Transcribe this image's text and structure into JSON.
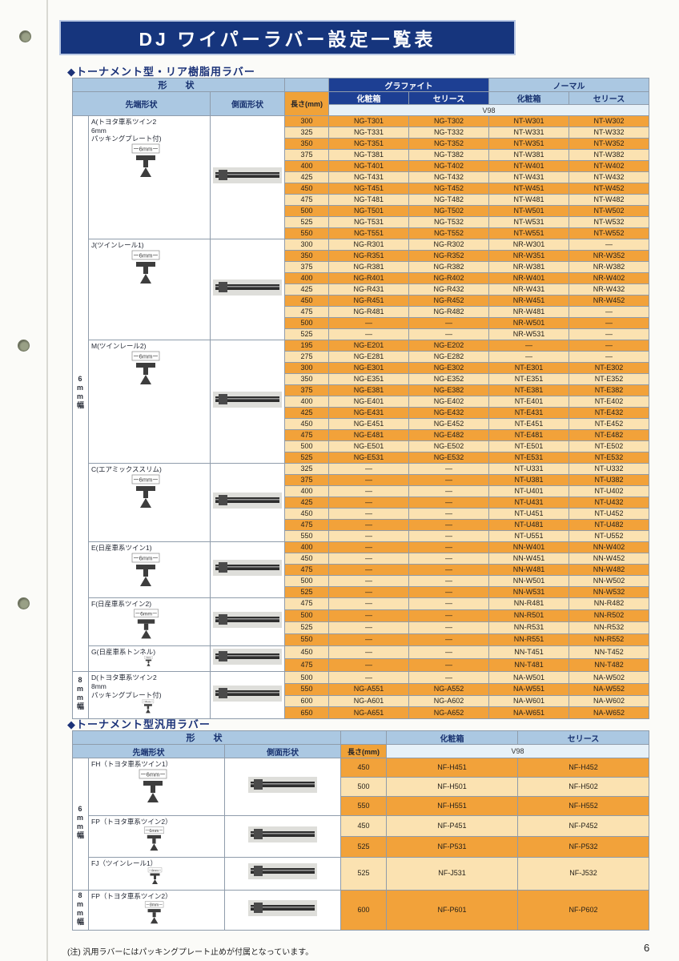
{
  "page": {
    "title": "DJ ワイパーラバー設定一覧表",
    "page_number": "6",
    "note": "(注) 汎用ラバーにはパッキングプレート止めが付属となっています。"
  },
  "section1": {
    "heading": "◆トーナメント型・リア樹脂用ラバー",
    "headers": {
      "shape": "形　状",
      "tip": "先端形状",
      "side": "側面形状",
      "length": "長さ(mm)",
      "graphite": "グラファイト",
      "normal": "ノーマル",
      "box": "化粧箱",
      "series": "セリース",
      "v98": "V98"
    },
    "groups": [
      {
        "label": "A(トヨタ車系ツイン2\n6mm\nパッキングプレート付)",
        "band": "6mm幅",
        "dim": "6mm",
        "rows": [
          [
            "300",
            "NG-T301",
            "NG-T302",
            "NT-W301",
            "NT-W302"
          ],
          [
            "325",
            "NG-T331",
            "NG-T332",
            "NT-W331",
            "NT-W332"
          ],
          [
            "350",
            "NG-T351",
            "NG-T352",
            "NT-W351",
            "NT-W352"
          ],
          [
            "375",
            "NG-T381",
            "NG-T382",
            "NT-W381",
            "NT-W382"
          ],
          [
            "400",
            "NG-T401",
            "NG-T402",
            "NT-W401",
            "NT-W402"
          ],
          [
            "425",
            "NG-T431",
            "NG-T432",
            "NT-W431",
            "NT-W432"
          ],
          [
            "450",
            "NG-T451",
            "NG-T452",
            "NT-W451",
            "NT-W452"
          ],
          [
            "475",
            "NG-T481",
            "NG-T482",
            "NT-W481",
            "NT-W482"
          ],
          [
            "500",
            "NG-T501",
            "NG-T502",
            "NT-W501",
            "NT-W502"
          ],
          [
            "525",
            "NG-T531",
            "NG-T532",
            "NT-W531",
            "NT-W532"
          ],
          [
            "550",
            "NG-T551",
            "NG-T552",
            "NT-W551",
            "NT-W552"
          ]
        ]
      },
      {
        "label": "J(ツインレール1)",
        "band": "6mm幅",
        "dim": "6mm",
        "rows": [
          [
            "300",
            "NG-R301",
            "NG-R302",
            "NR-W301",
            "—"
          ],
          [
            "350",
            "NG-R351",
            "NG-R352",
            "NR-W351",
            "NR-W352"
          ],
          [
            "375",
            "NG-R381",
            "NG-R382",
            "NR-W381",
            "NR-W382"
          ],
          [
            "400",
            "NG-R401",
            "NG-R402",
            "NR-W401",
            "NR-W402"
          ],
          [
            "425",
            "NG-R431",
            "NG-R432",
            "NR-W431",
            "NR-W432"
          ],
          [
            "450",
            "NG-R451",
            "NG-R452",
            "NR-W451",
            "NR-W452"
          ],
          [
            "475",
            "NG-R481",
            "NG-R482",
            "NR-W481",
            "—"
          ],
          [
            "500",
            "—",
            "—",
            "NR-W501",
            "—"
          ],
          [
            "525",
            "—",
            "—",
            "NR-W531",
            "—"
          ]
        ]
      },
      {
        "label": "M(ツインレール2)",
        "band": "6mm幅",
        "dim": "6mm",
        "rows": [
          [
            "195",
            "NG-E201",
            "NG-E202",
            "—",
            "—"
          ],
          [
            "275",
            "NG-E281",
            "NG-E282",
            "—",
            "—"
          ],
          [
            "300",
            "NG-E301",
            "NG-E302",
            "NT-E301",
            "NT-E302"
          ],
          [
            "350",
            "NG-E351",
            "NG-E352",
            "NT-E351",
            "NT-E352"
          ],
          [
            "375",
            "NG-E381",
            "NG-E382",
            "NT-E381",
            "NT-E382"
          ],
          [
            "400",
            "NG-E401",
            "NG-E402",
            "NT-E401",
            "NT-E402"
          ],
          [
            "425",
            "NG-E431",
            "NG-E432",
            "NT-E431",
            "NT-E432"
          ],
          [
            "450",
            "NG-E451",
            "NG-E452",
            "NT-E451",
            "NT-E452"
          ],
          [
            "475",
            "NG-E481",
            "NG-E482",
            "NT-E481",
            "NT-E482"
          ],
          [
            "500",
            "NG-E501",
            "NG-E502",
            "NT-E501",
            "NT-E502"
          ],
          [
            "525",
            "NG-E531",
            "NG-E532",
            "NT-E531",
            "NT-E532"
          ]
        ]
      },
      {
        "label": "C(エアミックススリム)",
        "band": "6mm幅",
        "dim": "6mm",
        "rows": [
          [
            "325",
            "—",
            "—",
            "NT-U331",
            "NT-U332"
          ],
          [
            "375",
            "—",
            "—",
            "NT-U381",
            "NT-U382"
          ],
          [
            "400",
            "—",
            "—",
            "NT-U401",
            "NT-U402"
          ],
          [
            "425",
            "—",
            "—",
            "NT-U431",
            "NT-U432"
          ],
          [
            "450",
            "—",
            "—",
            "NT-U451",
            "NT-U452"
          ],
          [
            "475",
            "—",
            "—",
            "NT-U481",
            "NT-U482"
          ],
          [
            "550",
            "—",
            "—",
            "NT-U551",
            "NT-U552"
          ]
        ]
      },
      {
        "label": "E(日産車系ツイン1)",
        "band": "6mm幅",
        "dim": "6mm",
        "rows": [
          [
            "400",
            "—",
            "—",
            "NN-W401",
            "NN-W402"
          ],
          [
            "450",
            "—",
            "—",
            "NN-W451",
            "NN-W452"
          ],
          [
            "475",
            "—",
            "—",
            "NN-W481",
            "NN-W482"
          ],
          [
            "500",
            "—",
            "—",
            "NN-W501",
            "NN-W502"
          ],
          [
            "525",
            "—",
            "—",
            "NN-W531",
            "NN-W532"
          ]
        ]
      },
      {
        "label": "F(日産車系ツイン2)",
        "band": "6mm幅",
        "dim": "6mm",
        "rows": [
          [
            "475",
            "—",
            "—",
            "NN-R481",
            "NN-R482"
          ],
          [
            "500",
            "—",
            "—",
            "NN-R501",
            "NN-R502"
          ],
          [
            "525",
            "—",
            "—",
            "NN-R531",
            "NN-R532"
          ],
          [
            "550",
            "—",
            "—",
            "NN-R551",
            "NN-R552"
          ]
        ]
      },
      {
        "label": "G(日産車系トンネル)",
        "band": "6mm幅",
        "dim": "6mm",
        "rows": [
          [
            "450",
            "—",
            "—",
            "NN-T451",
            "NN-T452"
          ],
          [
            "475",
            "—",
            "—",
            "NN-T481",
            "NN-T482"
          ]
        ]
      },
      {
        "label": "D(トヨタ車系ツイン2\n8mm\nパッキングプレート付)",
        "band": "8mm幅",
        "dim": "8mm",
        "rows": [
          [
            "500",
            "—",
            "—",
            "NA-W501",
            "NA-W502"
          ],
          [
            "550",
            "NG-A551",
            "NG-A552",
            "NA-W551",
            "NA-W552"
          ],
          [
            "600",
            "NG-A601",
            "NG-A602",
            "NA-W601",
            "NA-W602"
          ],
          [
            "650",
            "NG-A651",
            "NG-A652",
            "NA-W651",
            "NA-W652"
          ]
        ]
      }
    ]
  },
  "section2": {
    "heading": "◆トーナメント型汎用ラバー",
    "headers": {
      "shape": "形　状",
      "tip": "先端形状",
      "side": "側面形状",
      "length": "長さ(mm)",
      "box": "化粧箱",
      "series": "セリース",
      "v98": "V98"
    },
    "groups": [
      {
        "label": "FH（トヨタ車系ツイン1）",
        "band": "6mm幅",
        "dim": "6mm",
        "rows": [
          [
            "450",
            "NF-H451",
            "NF-H452"
          ],
          [
            "500",
            "NF-H501",
            "NF-H502"
          ],
          [
            "550",
            "NF-H551",
            "NF-H552"
          ]
        ]
      },
      {
        "label": "FP（トヨタ車系ツイン2）",
        "band": "6mm幅",
        "dim": "6mm",
        "rows": [
          [
            "450",
            "NF-P451",
            "NF-P452"
          ],
          [
            "525",
            "NF-P531",
            "NF-P532"
          ]
        ]
      },
      {
        "label": "FJ（ツインレール1）",
        "band": "6mm幅",
        "dim": "6mm",
        "rows": [
          [
            "525",
            "NF-J531",
            "NF-J532"
          ]
        ]
      },
      {
        "label": "FP（トヨタ車系ツイン2）",
        "band": "8mm幅",
        "dim": "8mm",
        "rows": [
          [
            "600",
            "NF-P601",
            "NF-P602"
          ]
        ]
      }
    ]
  }
}
